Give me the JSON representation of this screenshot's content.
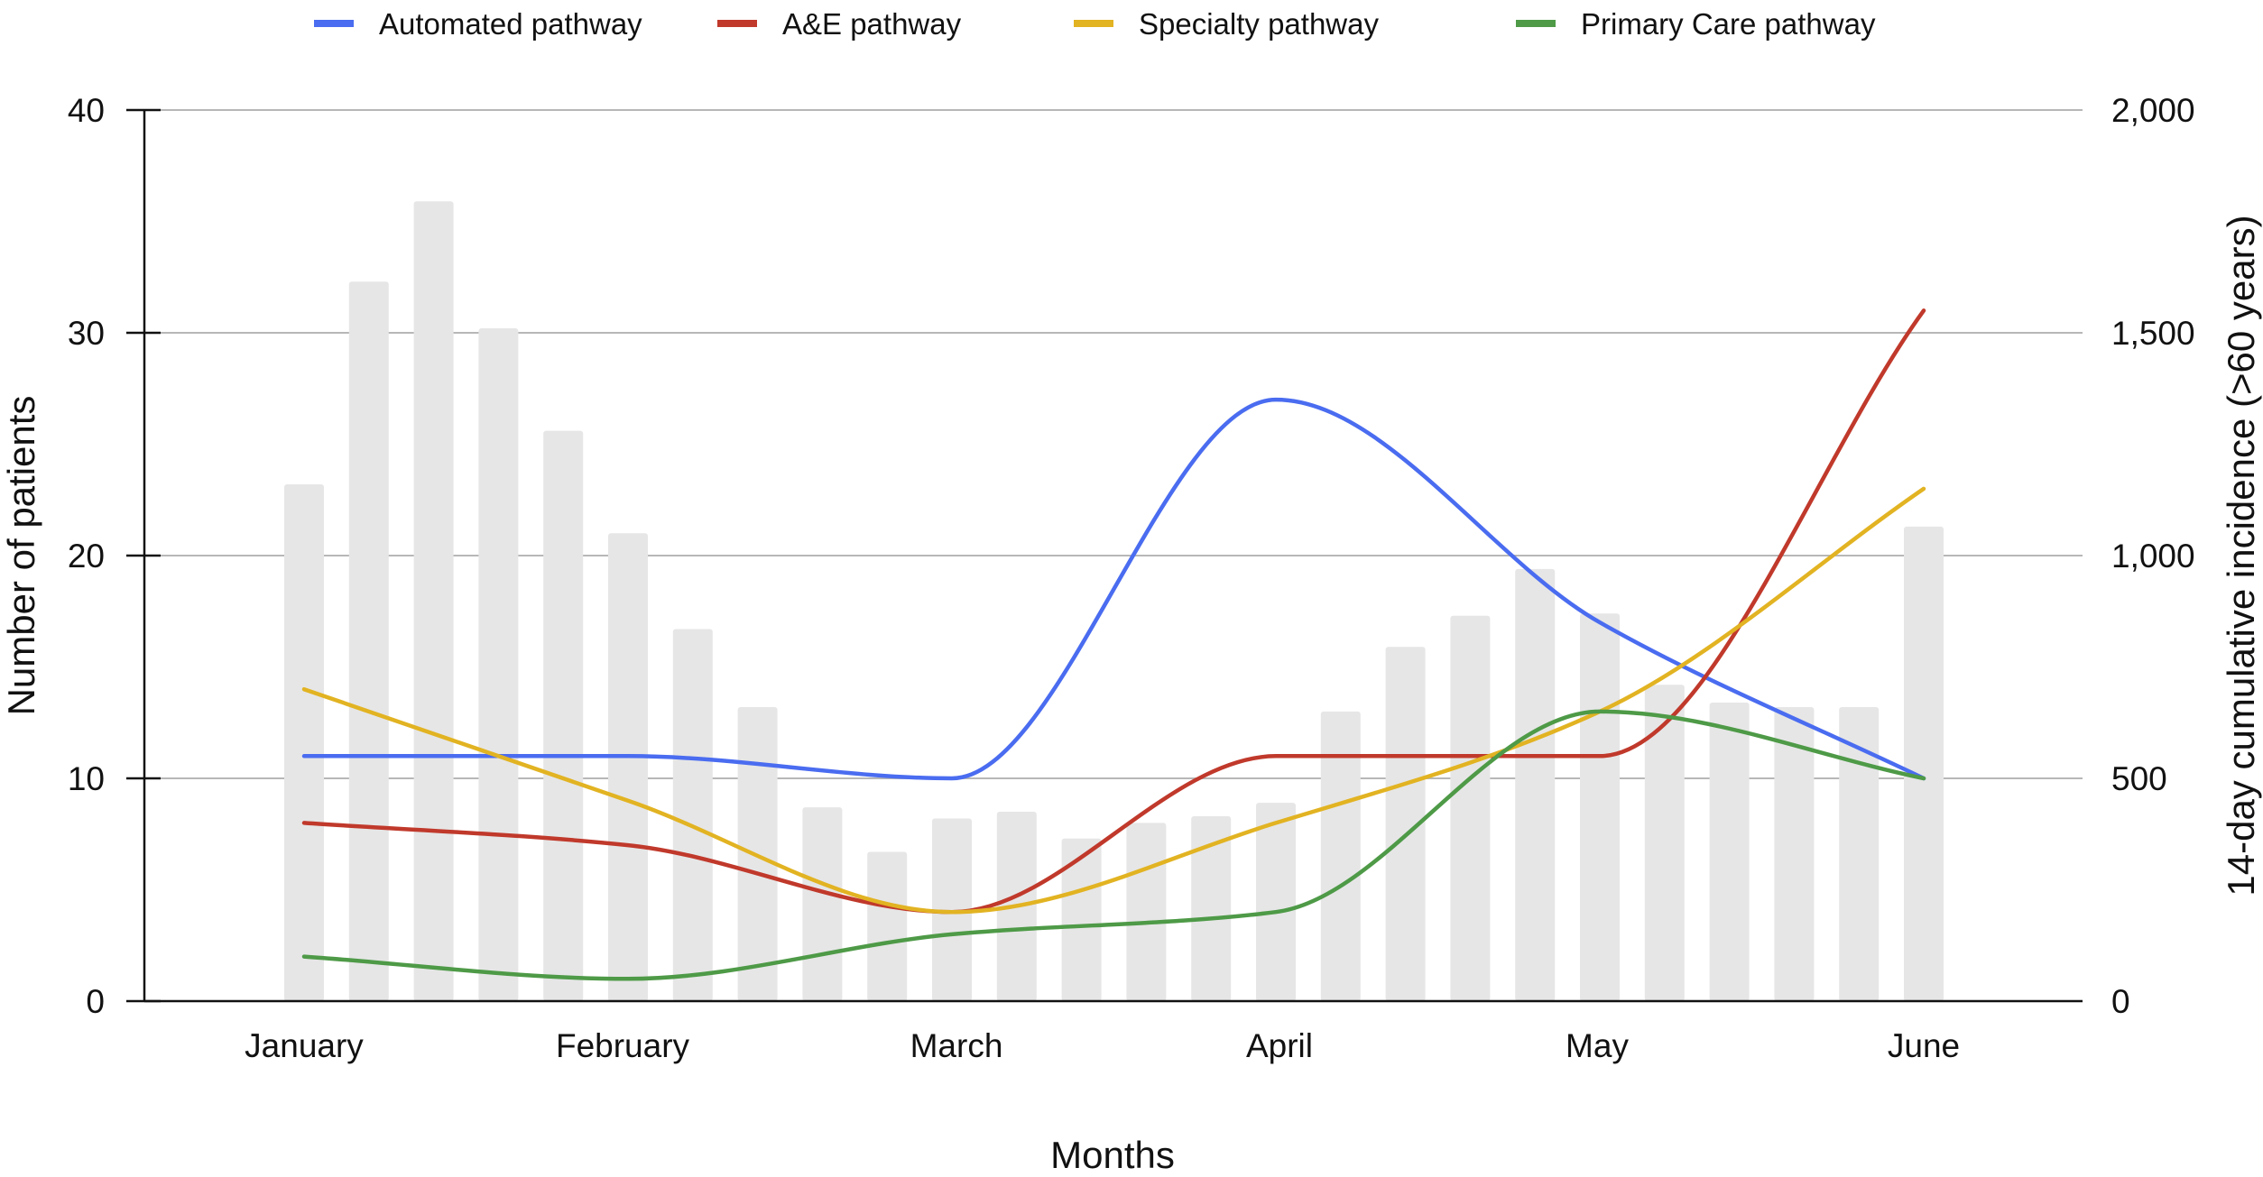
{
  "chart_data": {
    "type": "line",
    "xlabel": "Months",
    "ylabel": "Number of patients",
    "y2label": "14-day cumulative incidence (>60 years)",
    "x_ticks": [
      "January",
      "February",
      "March",
      "April",
      "May",
      "June"
    ],
    "ylim": [
      0,
      40
    ],
    "y_ticks": [
      "0",
      "10",
      "20",
      "30",
      "40"
    ],
    "y2lim": [
      0,
      2000
    ],
    "y2_ticks": [
      "0",
      "500",
      "1,000",
      "1,500",
      "2,000"
    ],
    "grid": true,
    "legend_position": "top",
    "line_points_x": [
      0,
      1,
      2,
      3,
      4,
      5
    ],
    "series": [
      {
        "name": "Automated pathway",
        "color": "#4a6cf0",
        "values": [
          11,
          11,
          10,
          27,
          17,
          10
        ]
      },
      {
        "name": "A&E pathway",
        "color": "#c0392b",
        "values": [
          8,
          7,
          4,
          11,
          11,
          31
        ]
      },
      {
        "name": "Specialty pathway",
        "color": "#e2b322",
        "values": [
          14,
          9,
          4,
          8,
          13,
          23
        ]
      },
      {
        "name": "Primary Care pathway",
        "color": "#4e9a47",
        "values": [
          2,
          1,
          3,
          4,
          13,
          10
        ]
      }
    ],
    "bars": {
      "axis": "right",
      "color": "#e6e6e6",
      "x": [
        0,
        0.2,
        0.4,
        0.6,
        0.8,
        1.0,
        1.2,
        1.4,
        1.6,
        1.8,
        2.0,
        2.2,
        2.4,
        2.6,
        2.8,
        3.0,
        3.2,
        3.4,
        3.6,
        3.8,
        4.0,
        4.2,
        4.4,
        4.6,
        4.8,
        5.0
      ],
      "values": [
        1160,
        1615,
        1795,
        1510,
        1280,
        1050,
        835,
        660,
        435,
        335,
        410,
        425,
        365,
        400,
        415,
        445,
        650,
        795,
        865,
        970,
        870,
        710,
        670,
        660,
        660,
        1065
      ]
    }
  }
}
